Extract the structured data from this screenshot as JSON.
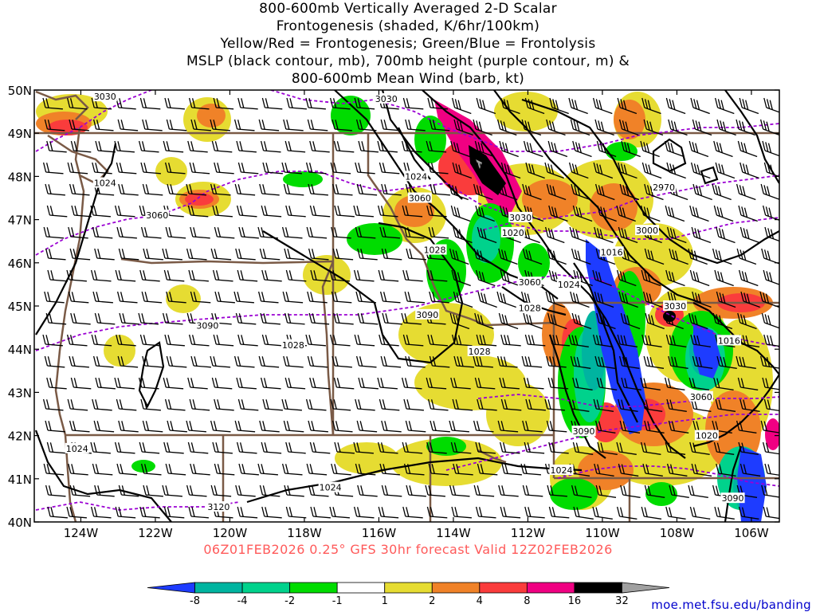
{
  "title": {
    "lines": [
      "800-600mb Vertically Averaged 2-D Scalar",
      "Frontogenesis (shaded, K/6hr/100km)",
      "Yellow/Red = Frontogenesis;  Green/Blue = Frontolysis",
      "MSLP (black contour, mb), 700mb height (purple contour, m) &",
      "800-600mb Mean Wind (barb, kt)"
    ]
  },
  "map": {
    "latitude_labels": [
      "50N",
      "49N",
      "48N",
      "47N",
      "46N",
      "45N",
      "44N",
      "43N",
      "42N",
      "41N",
      "40N"
    ],
    "longitude_labels": [
      "124W",
      "122W",
      "120W",
      "118W",
      "116W",
      "114W",
      "112W",
      "110W",
      "108W",
      "106W"
    ],
    "lat_range": [
      40,
      50
    ],
    "lon_range": [
      -125.25,
      -105.25
    ],
    "mslp_contour_labels": [
      {
        "text": "1024",
        "lon": -123.35,
        "lat": 47.85
      },
      {
        "text": "1024",
        "lon": -124.1,
        "lat": 41.7
      },
      {
        "text": "1028",
        "lon": -118.3,
        "lat": 44.1
      },
      {
        "text": "1024",
        "lon": -115.0,
        "lat": 48.0
      },
      {
        "text": "1028",
        "lon": -114.5,
        "lat": 46.3
      },
      {
        "text": "1028",
        "lon": -113.3,
        "lat": 43.95
      },
      {
        "text": "1028",
        "lon": -111.95,
        "lat": 44.95
      },
      {
        "text": "1024",
        "lon": -110.9,
        "lat": 45.5
      },
      {
        "text": "1024",
        "lon": -117.3,
        "lat": 40.8
      },
      {
        "text": "1020",
        "lon": -112.4,
        "lat": 46.7
      },
      {
        "text": "1016",
        "lon": -109.75,
        "lat": 46.25
      },
      {
        "text": "1016",
        "lon": -106.6,
        "lat": 44.2
      },
      {
        "text": "1020",
        "lon": -107.2,
        "lat": 42.0
      },
      {
        "text": "1024",
        "lon": -111.1,
        "lat": 41.2
      }
    ],
    "height_contour_labels": [
      {
        "text": "3030",
        "lon": -123.35,
        "lat": 49.85
      },
      {
        "text": "3030",
        "lon": -115.8,
        "lat": 49.8
      },
      {
        "text": "3060",
        "lon": -121.95,
        "lat": 47.1
      },
      {
        "text": "3060",
        "lon": -114.9,
        "lat": 47.5
      },
      {
        "text": "3090",
        "lon": -120.6,
        "lat": 44.55
      },
      {
        "text": "3090",
        "lon": -114.7,
        "lat": 44.8
      },
      {
        "text": "3030",
        "lon": -112.2,
        "lat": 47.05
      },
      {
        "text": "2970",
        "lon": -108.35,
        "lat": 47.75
      },
      {
        "text": "3000",
        "lon": -108.8,
        "lat": 46.75
      },
      {
        "text": "3060",
        "lon": -111.95,
        "lat": 45.55
      },
      {
        "text": "3030",
        "lon": -108.05,
        "lat": 45.0
      },
      {
        "text": "3060",
        "lon": -107.35,
        "lat": 42.9
      },
      {
        "text": "3090",
        "lon": -110.5,
        "lat": 42.1
      },
      {
        "text": "3090",
        "lon": -106.5,
        "lat": 40.55
      },
      {
        "text": "3120",
        "lon": -120.3,
        "lat": 40.35
      }
    ]
  },
  "colorbar": {
    "labels": [
      "-8",
      "-4",
      "-2",
      "-1",
      "1",
      "2",
      "4",
      "8",
      "16",
      "32"
    ],
    "colors": [
      "#1e3cff",
      "#00b4a0",
      "#00d28c",
      "#00dc00",
      "#ffffff",
      "#e6dc32",
      "#f08228",
      "#fa3c3c",
      "#f00082",
      "#000000",
      "#a0a0a0"
    ],
    "tick_labels": [
      "-8",
      "-4",
      "-2",
      "-1",
      "1",
      "2",
      "4",
      "8",
      "16",
      "32"
    ]
  },
  "caption": "06Z01FEB2026 0.25° GFS 30hr forecast Valid 12Z02FEB2026",
  "credit": "moe.met.fsu.edu/banding",
  "colors": {
    "mslp": "#000000",
    "height": "#9b00d3",
    "borders": "#7a5a46",
    "caption": "#ff5a5a",
    "credit": "#0000cc"
  }
}
